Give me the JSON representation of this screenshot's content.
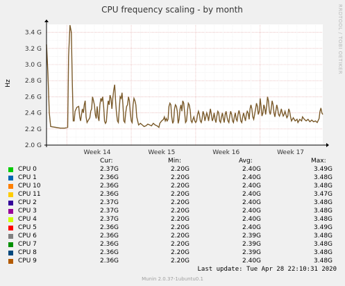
{
  "side_label": "RRDTOOL / TOBI OETIKER",
  "chart_data": {
    "type": "line",
    "title": "CPU frequency scaling - by month",
    "ylabel": "Hz",
    "xlabel": "",
    "ylim": [
      2.0,
      3.5
    ],
    "yticks": [
      {
        "value": 2.0,
        "label": "2.0 G"
      },
      {
        "value": 2.2,
        "label": "2.2 G"
      },
      {
        "value": 2.4,
        "label": "2.4 G"
      },
      {
        "value": 2.6,
        "label": "2.6 G"
      },
      {
        "value": 2.8,
        "label": "2.8 G"
      },
      {
        "value": 3.0,
        "label": "3.0 G"
      },
      {
        "value": 3.2,
        "label": "3.2 G"
      },
      {
        "value": 3.4,
        "label": "3.4 G"
      }
    ],
    "x_range_days": [
      0,
      30
    ],
    "xticks": [
      {
        "day": 5.5,
        "label": "Week 14"
      },
      {
        "day": 12.5,
        "label": "Week 15"
      },
      {
        "day": 19.5,
        "label": "Week 16"
      },
      {
        "day": 26.5,
        "label": "Week 17"
      }
    ],
    "grid": true,
    "series_color": "#7a5a2a",
    "points": [
      [
        0.0,
        3.25
      ],
      [
        0.15,
        2.9
      ],
      [
        0.3,
        2.4
      ],
      [
        0.45,
        2.23
      ],
      [
        1.0,
        2.22
      ],
      [
        1.5,
        2.21
      ],
      [
        2.0,
        2.21
      ],
      [
        2.3,
        2.22
      ],
      [
        2.4,
        3.1
      ],
      [
        2.55,
        3.49
      ],
      [
        2.7,
        3.4
      ],
      [
        2.8,
        2.8
      ],
      [
        2.9,
        2.3
      ],
      [
        3.0,
        2.3
      ],
      [
        3.1,
        2.42
      ],
      [
        3.3,
        2.47
      ],
      [
        3.5,
        2.48
      ],
      [
        3.6,
        2.35
      ],
      [
        3.7,
        2.3
      ],
      [
        3.8,
        2.38
      ],
      [
        3.9,
        2.45
      ],
      [
        4.0,
        2.4
      ],
      [
        4.1,
        2.5
      ],
      [
        4.2,
        2.55
      ],
      [
        4.3,
        2.35
      ],
      [
        4.4,
        2.28
      ],
      [
        4.5,
        2.3
      ],
      [
        4.7,
        2.34
      ],
      [
        4.8,
        2.42
      ],
      [
        4.9,
        2.45
      ],
      [
        5.0,
        2.6
      ],
      [
        5.1,
        2.55
      ],
      [
        5.2,
        2.5
      ],
      [
        5.3,
        2.38
      ],
      [
        5.4,
        2.33
      ],
      [
        5.5,
        2.48
      ],
      [
        5.6,
        2.35
      ],
      [
        5.7,
        2.3
      ],
      [
        5.8,
        2.5
      ],
      [
        5.9,
        2.58
      ],
      [
        6.0,
        2.55
      ],
      [
        6.1,
        2.6
      ],
      [
        6.2,
        2.48
      ],
      [
        6.3,
        2.3
      ],
      [
        6.4,
        2.27
      ],
      [
        6.5,
        2.29
      ],
      [
        6.6,
        2.45
      ],
      [
        6.7,
        2.55
      ],
      [
        6.8,
        2.5
      ],
      [
        6.9,
        2.62
      ],
      [
        7.0,
        2.58
      ],
      [
        7.1,
        2.45
      ],
      [
        7.2,
        2.58
      ],
      [
        7.3,
        2.68
      ],
      [
        7.4,
        2.75
      ],
      [
        7.5,
        2.55
      ],
      [
        7.6,
        2.4
      ],
      [
        7.7,
        2.3
      ],
      [
        7.8,
        2.28
      ],
      [
        7.9,
        2.45
      ],
      [
        8.0,
        2.6
      ],
      [
        8.1,
        2.58
      ],
      [
        8.2,
        2.65
      ],
      [
        8.3,
        2.5
      ],
      [
        8.4,
        2.3
      ],
      [
        8.5,
        2.28
      ],
      [
        8.6,
        2.4
      ],
      [
        8.7,
        2.48
      ],
      [
        8.8,
        2.5
      ],
      [
        8.9,
        2.6
      ],
      [
        9.0,
        2.55
      ],
      [
        9.1,
        2.4
      ],
      [
        9.2,
        2.3
      ],
      [
        9.3,
        2.28
      ],
      [
        9.4,
        2.5
      ],
      [
        9.5,
        2.58
      ],
      [
        9.6,
        2.55
      ],
      [
        9.7,
        2.5
      ],
      [
        9.8,
        2.35
      ],
      [
        9.9,
        2.3
      ],
      [
        10.0,
        2.25
      ],
      [
        10.2,
        2.27
      ],
      [
        10.4,
        2.25
      ],
      [
        10.6,
        2.23
      ],
      [
        10.8,
        2.24
      ],
      [
        11.0,
        2.26
      ],
      [
        11.2,
        2.25
      ],
      [
        11.4,
        2.24
      ],
      [
        11.6,
        2.27
      ],
      [
        11.8,
        2.25
      ],
      [
        12.0,
        2.24
      ],
      [
        12.2,
        2.22
      ],
      [
        12.3,
        2.27
      ],
      [
        12.5,
        2.3
      ],
      [
        12.7,
        2.32
      ],
      [
        12.8,
        2.35
      ],
      [
        12.9,
        2.3
      ],
      [
        13.0,
        2.33
      ],
      [
        13.1,
        2.3
      ],
      [
        13.2,
        2.32
      ],
      [
        13.3,
        2.48
      ],
      [
        13.4,
        2.52
      ],
      [
        13.5,
        2.5
      ],
      [
        13.6,
        2.35
      ],
      [
        13.7,
        2.27
      ],
      [
        13.8,
        2.3
      ],
      [
        13.9,
        2.45
      ],
      [
        14.0,
        2.5
      ],
      [
        14.1,
        2.48
      ],
      [
        14.2,
        2.42
      ],
      [
        14.3,
        2.27
      ],
      [
        14.4,
        2.32
      ],
      [
        14.5,
        2.45
      ],
      [
        14.6,
        2.5
      ],
      [
        14.7,
        2.42
      ],
      [
        14.8,
        2.55
      ],
      [
        14.9,
        2.52
      ],
      [
        15.0,
        2.4
      ],
      [
        15.1,
        2.28
      ],
      [
        15.2,
        2.3
      ],
      [
        15.3,
        2.42
      ],
      [
        15.4,
        2.52
      ],
      [
        15.5,
        2.5
      ],
      [
        15.6,
        2.43
      ],
      [
        15.7,
        2.3
      ],
      [
        15.8,
        2.28
      ],
      [
        15.9,
        2.32
      ],
      [
        16.0,
        2.35
      ],
      [
        16.1,
        2.3
      ],
      [
        16.2,
        2.28
      ],
      [
        16.3,
        2.3
      ],
      [
        16.4,
        2.38
      ],
      [
        16.5,
        2.42
      ],
      [
        16.6,
        2.38
      ],
      [
        16.7,
        2.3
      ],
      [
        16.8,
        2.28
      ],
      [
        16.9,
        2.33
      ],
      [
        17.0,
        2.42
      ],
      [
        17.1,
        2.38
      ],
      [
        17.2,
        2.3
      ],
      [
        17.3,
        2.35
      ],
      [
        17.4,
        2.4
      ],
      [
        17.5,
        2.36
      ],
      [
        17.6,
        2.3
      ],
      [
        17.7,
        2.38
      ],
      [
        17.8,
        2.45
      ],
      [
        17.9,
        2.38
      ],
      [
        18.0,
        2.3
      ],
      [
        18.1,
        2.33
      ],
      [
        18.2,
        2.4
      ],
      [
        18.3,
        2.32
      ],
      [
        18.4,
        2.28
      ],
      [
        18.5,
        2.36
      ],
      [
        18.6,
        2.42
      ],
      [
        18.7,
        2.4
      ],
      [
        18.8,
        2.3
      ],
      [
        18.9,
        2.28
      ],
      [
        19.0,
        2.35
      ],
      [
        19.1,
        2.4
      ],
      [
        19.2,
        2.33
      ],
      [
        19.3,
        2.28
      ],
      [
        19.4,
        2.38
      ],
      [
        19.5,
        2.42
      ],
      [
        19.6,
        2.35
      ],
      [
        19.7,
        2.3
      ],
      [
        19.8,
        2.28
      ],
      [
        19.9,
        2.36
      ],
      [
        20.0,
        2.42
      ],
      [
        20.1,
        2.38
      ],
      [
        20.2,
        2.3
      ],
      [
        20.3,
        2.28
      ],
      [
        20.4,
        2.35
      ],
      [
        20.5,
        2.4
      ],
      [
        20.6,
        2.32
      ],
      [
        20.7,
        2.3
      ],
      [
        20.8,
        2.38
      ],
      [
        20.9,
        2.43
      ],
      [
        21.0,
        2.38
      ],
      [
        21.1,
        2.3
      ],
      [
        21.2,
        2.28
      ],
      [
        21.3,
        2.35
      ],
      [
        21.4,
        2.4
      ],
      [
        21.5,
        2.35
      ],
      [
        21.6,
        2.3
      ],
      [
        21.7,
        2.38
      ],
      [
        21.8,
        2.42
      ],
      [
        21.9,
        2.4
      ],
      [
        22.0,
        2.32
      ],
      [
        22.1,
        2.45
      ],
      [
        22.2,
        2.5
      ],
      [
        22.3,
        2.45
      ],
      [
        22.4,
        2.35
      ],
      [
        22.5,
        2.32
      ],
      [
        22.6,
        2.38
      ],
      [
        22.7,
        2.45
      ],
      [
        22.8,
        2.52
      ],
      [
        22.9,
        2.48
      ],
      [
        23.0,
        2.38
      ],
      [
        23.1,
        2.42
      ],
      [
        23.2,
        2.58
      ],
      [
        23.3,
        2.48
      ],
      [
        23.4,
        2.36
      ],
      [
        23.5,
        2.4
      ],
      [
        23.6,
        2.5
      ],
      [
        23.7,
        2.46
      ],
      [
        23.8,
        2.38
      ],
      [
        23.9,
        2.48
      ],
      [
        24.0,
        2.6
      ],
      [
        24.1,
        2.55
      ],
      [
        24.2,
        2.42
      ],
      [
        24.3,
        2.38
      ],
      [
        24.4,
        2.45
      ],
      [
        24.5,
        2.55
      ],
      [
        24.6,
        2.5
      ],
      [
        24.7,
        2.4
      ],
      [
        24.8,
        2.35
      ],
      [
        24.9,
        2.42
      ],
      [
        25.0,
        2.5
      ],
      [
        25.1,
        2.45
      ],
      [
        25.2,
        2.38
      ],
      [
        25.3,
        2.36
      ],
      [
        25.4,
        2.4
      ],
      [
        25.5,
        2.45
      ],
      [
        25.6,
        2.4
      ],
      [
        25.7,
        2.36
      ],
      [
        25.8,
        2.38
      ],
      [
        25.9,
        2.42
      ],
      [
        26.0,
        2.38
      ],
      [
        26.1,
        2.34
      ],
      [
        26.2,
        2.36
      ],
      [
        26.3,
        2.45
      ],
      [
        26.4,
        2.42
      ],
      [
        26.5,
        2.35
      ],
      [
        26.6,
        2.3
      ],
      [
        26.8,
        2.34
      ],
      [
        27.0,
        2.3
      ],
      [
        27.2,
        2.32
      ],
      [
        27.3,
        2.28
      ],
      [
        27.5,
        2.32
      ],
      [
        27.7,
        2.3
      ],
      [
        27.8,
        2.35
      ],
      [
        28.0,
        2.32
      ],
      [
        28.2,
        2.3
      ],
      [
        28.4,
        2.32
      ],
      [
        28.6,
        2.29
      ],
      [
        28.8,
        2.31
      ],
      [
        29.0,
        2.29
      ],
      [
        29.2,
        2.3
      ],
      [
        29.4,
        2.28
      ],
      [
        29.6,
        2.33
      ],
      [
        29.7,
        2.42
      ],
      [
        29.8,
        2.46
      ],
      [
        29.9,
        2.4
      ],
      [
        30.0,
        2.38
      ]
    ]
  },
  "legend": {
    "headers": {
      "cur": "Cur:",
      "min": "Min:",
      "avg": "Avg:",
      "max": "Max:"
    },
    "rows": [
      {
        "name": "CPU 0",
        "color": "#00cc00",
        "cur": "2.37G",
        "min": "2.20G",
        "avg": "2.40G",
        "max": "3.49G"
      },
      {
        "name": "CPU 1",
        "color": "#0066b3",
        "cur": "2.36G",
        "min": "2.20G",
        "avg": "2.40G",
        "max": "3.48G"
      },
      {
        "name": "CPU 10",
        "color": "#ff8000",
        "cur": "2.36G",
        "min": "2.20G",
        "avg": "2.40G",
        "max": "3.48G"
      },
      {
        "name": "CPU 11",
        "color": "#ffcc00",
        "cur": "2.36G",
        "min": "2.20G",
        "avg": "2.40G",
        "max": "3.47G"
      },
      {
        "name": "CPU 2",
        "color": "#330099",
        "cur": "2.37G",
        "min": "2.20G",
        "avg": "2.40G",
        "max": "3.48G"
      },
      {
        "name": "CPU 3",
        "color": "#990099",
        "cur": "2.37G",
        "min": "2.20G",
        "avg": "2.40G",
        "max": "3.48G"
      },
      {
        "name": "CPU 4",
        "color": "#ccff00",
        "cur": "2.37G",
        "min": "2.20G",
        "avg": "2.40G",
        "max": "3.48G"
      },
      {
        "name": "CPU 5",
        "color": "#ff0000",
        "cur": "2.36G",
        "min": "2.20G",
        "avg": "2.40G",
        "max": "3.49G"
      },
      {
        "name": "CPU 6",
        "color": "#808080",
        "cur": "2.36G",
        "min": "2.20G",
        "avg": "2.39G",
        "max": "3.48G"
      },
      {
        "name": "CPU 7",
        "color": "#008f00",
        "cur": "2.36G",
        "min": "2.20G",
        "avg": "2.39G",
        "max": "3.48G"
      },
      {
        "name": "CPU 8",
        "color": "#00487d",
        "cur": "2.36G",
        "min": "2.20G",
        "avg": "2.39G",
        "max": "3.48G"
      },
      {
        "name": "CPU 9",
        "color": "#b35a00",
        "cur": "2.36G",
        "min": "2.20G",
        "avg": "2.40G",
        "max": "3.48G"
      }
    ]
  },
  "last_update": "Last update: Tue Apr 28 22:10:31 2020",
  "footer": "Munin 2.0.37-1ubuntu0.1"
}
